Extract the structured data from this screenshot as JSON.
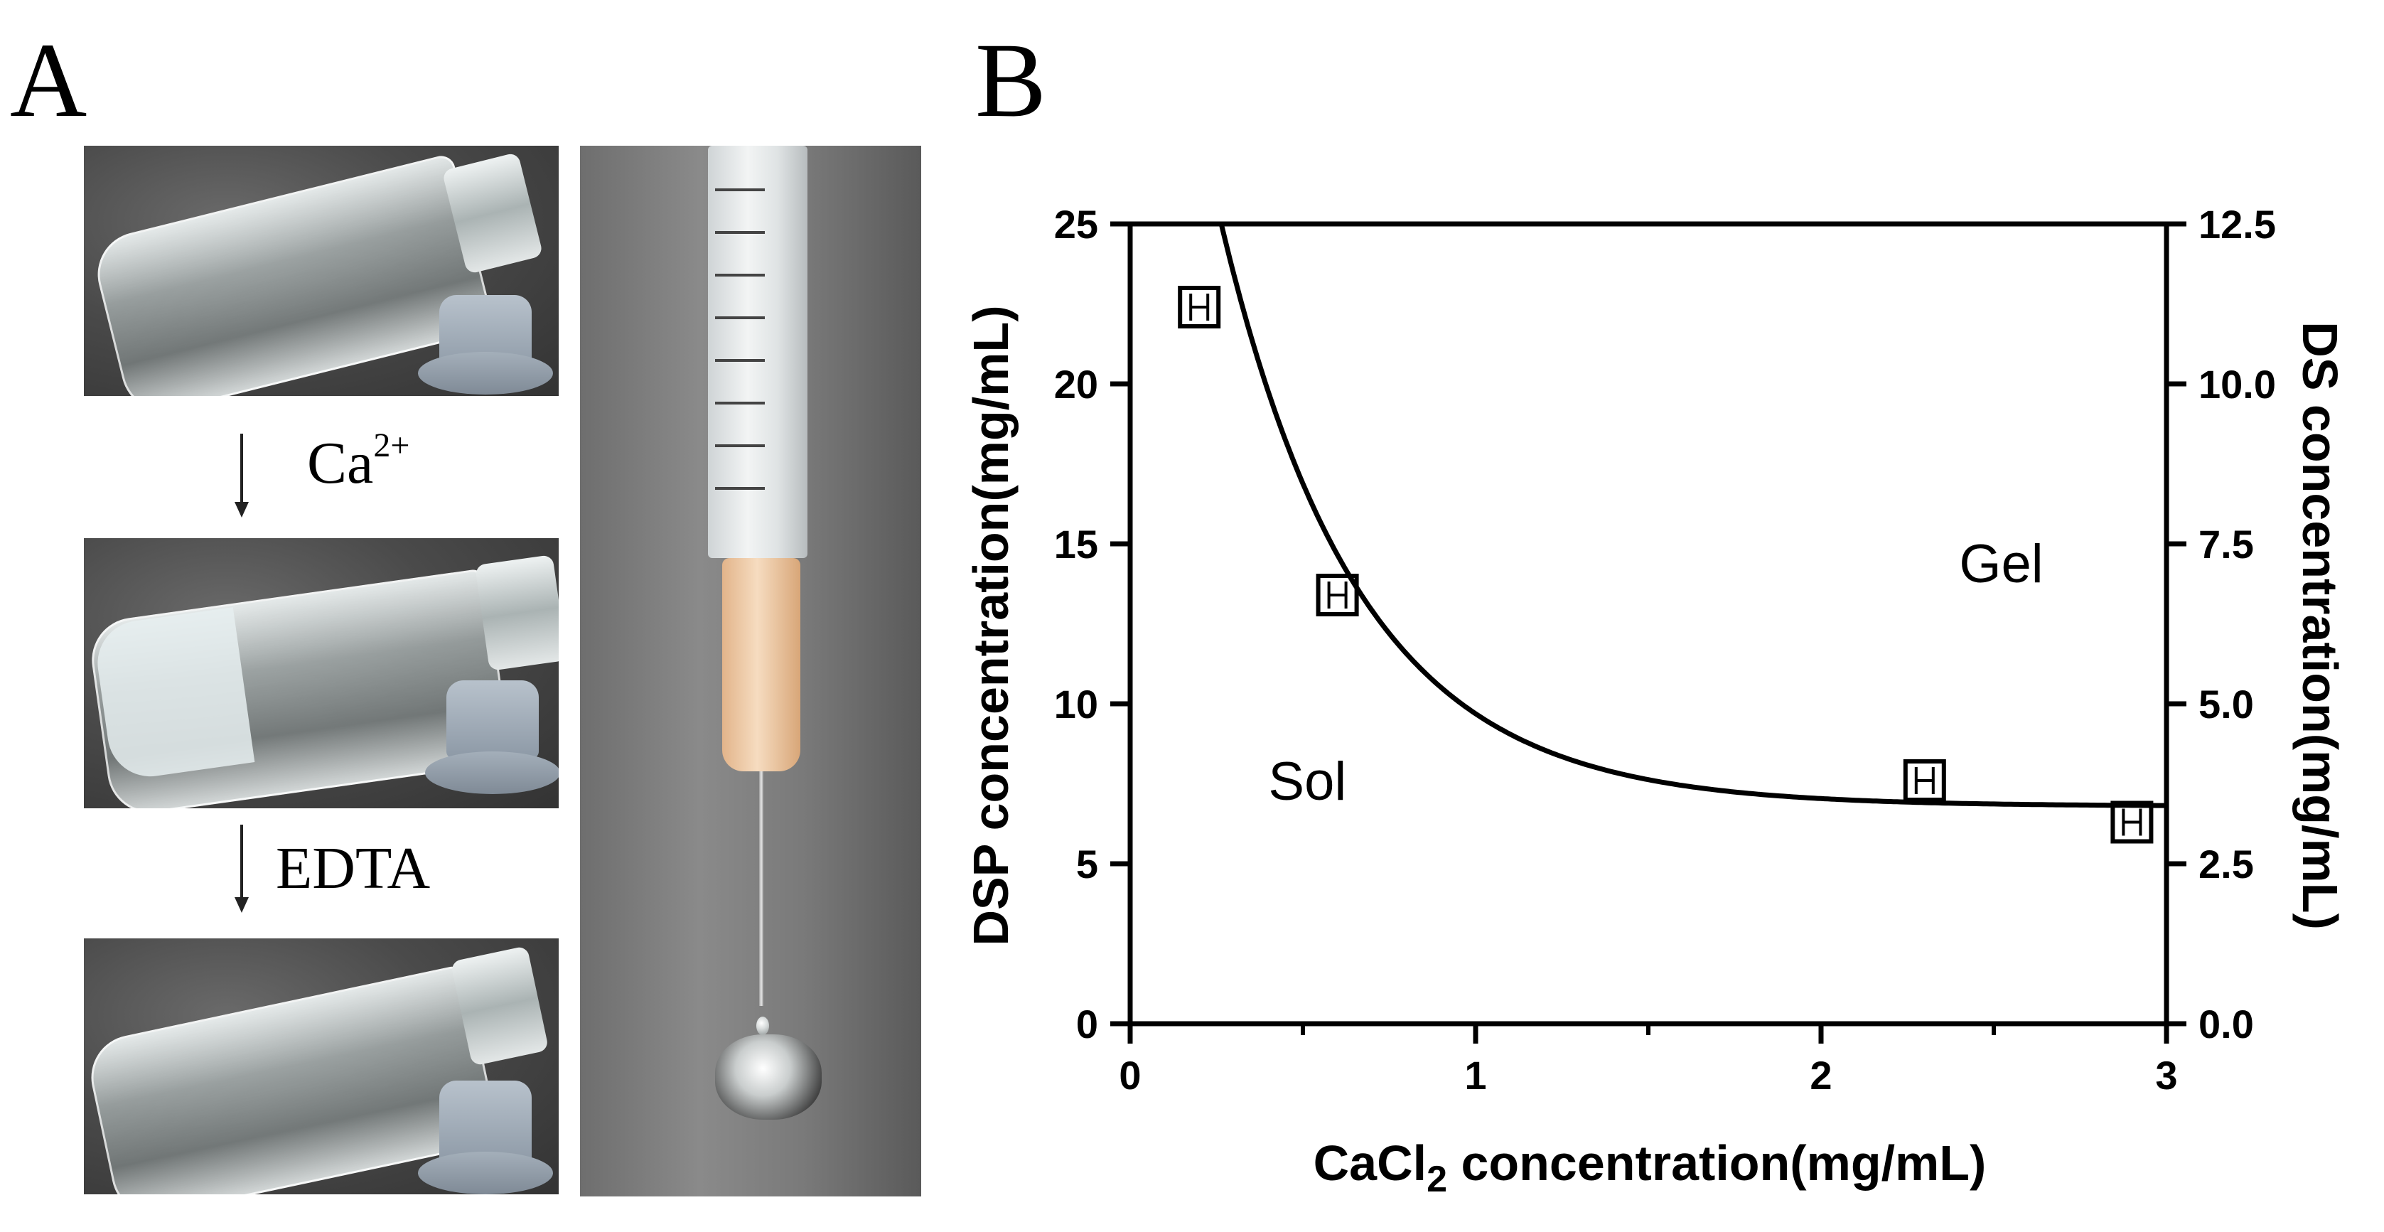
{
  "panel_a": {
    "letter": "A",
    "arrow_1_label_base": "Ca",
    "arrow_1_label_sup": "2+",
    "arrow_2_label": "EDTA"
  },
  "panel_b": {
    "letter": "B"
  },
  "chart_data": {
    "type": "scatter",
    "xlabel_main": "CaCl",
    "xlabel_sub": "2",
    "xlabel_rest": " concentration(mg/mL)",
    "ylabel": "DSP concentration(mg/mL)",
    "y2label": "DS concentration(mg/mL)",
    "xlim": [
      0,
      3
    ],
    "ylim": [
      0,
      25
    ],
    "y2lim": [
      0,
      12.5
    ],
    "xticks": [
      "0",
      "1",
      "2",
      "3"
    ],
    "yticks": [
      "0",
      "5",
      "10",
      "15",
      "20",
      "25"
    ],
    "y2ticks": [
      "0.0",
      "2.5",
      "5.0",
      "7.5",
      "10.0",
      "12.5"
    ],
    "points": [
      {
        "x": 0.2,
        "y": 22.4
      },
      {
        "x": 0.6,
        "y": 13.4
      },
      {
        "x": 2.3,
        "y": 7.6
      },
      {
        "x": 2.9,
        "y": 6.3
      }
    ],
    "fit_curve": {
      "form": "exponential decay",
      "y0": 42.0,
      "plateau": 6.8,
      "k": 2.5
    },
    "annotations": [
      {
        "text": "Gel",
        "x": 2.4,
        "y": 13.8
      },
      {
        "text": "Sol",
        "x": 0.4,
        "y": 7.0
      }
    ],
    "grid": false,
    "marker": "open-square"
  }
}
